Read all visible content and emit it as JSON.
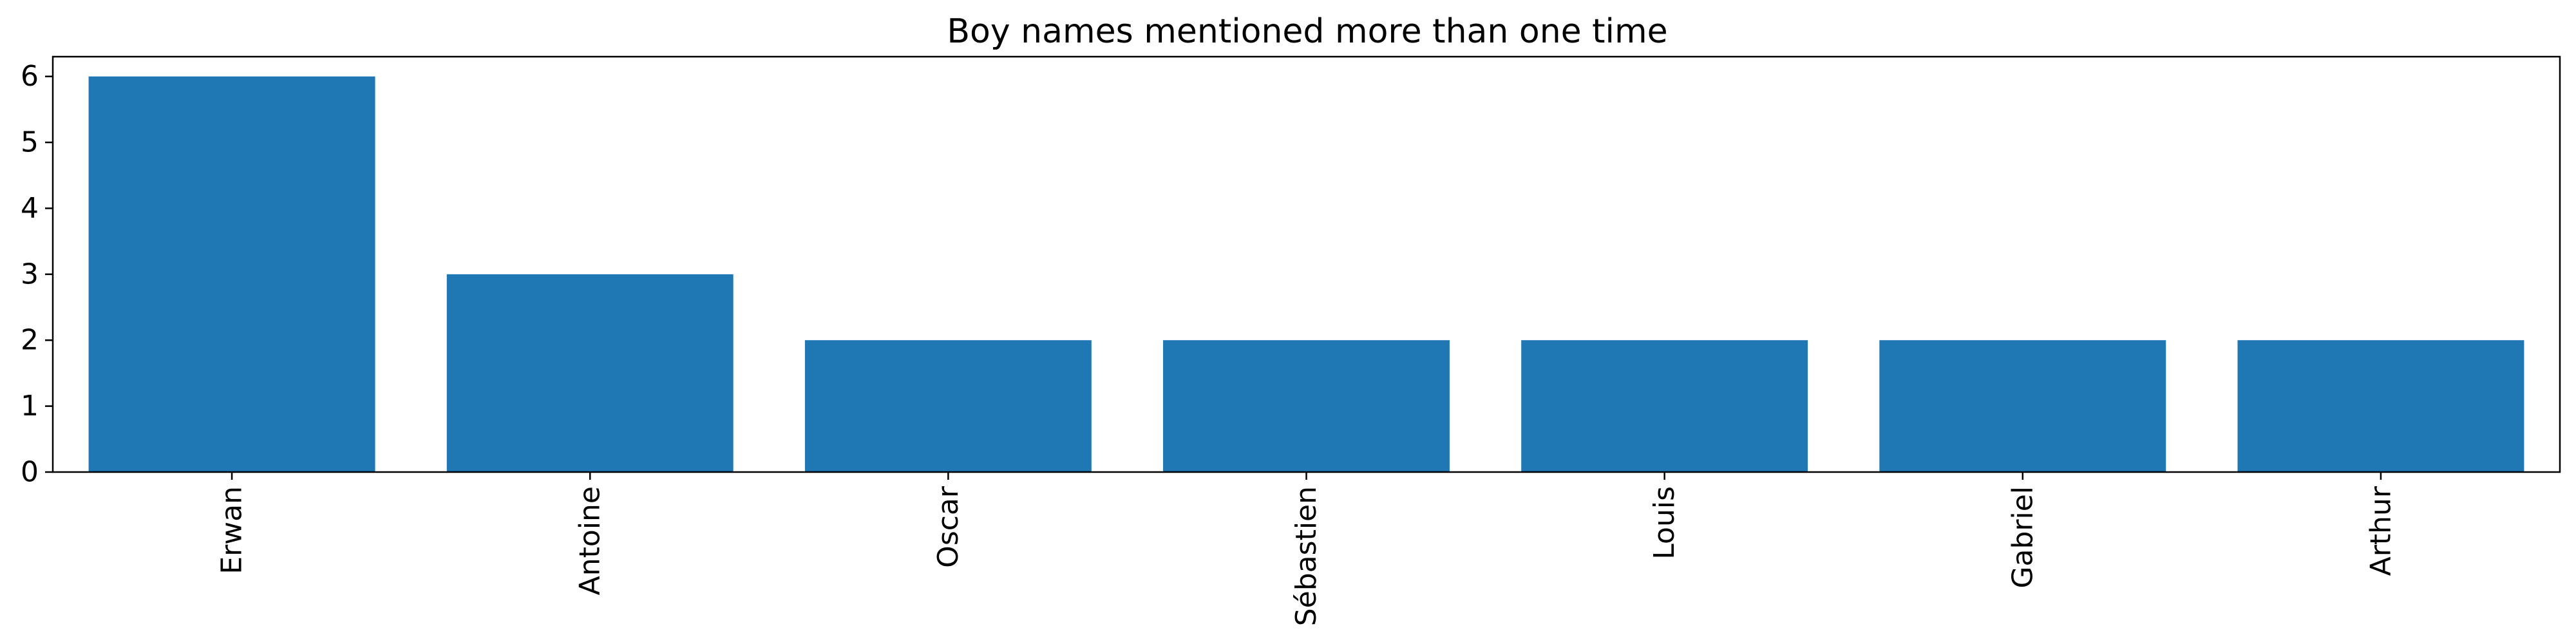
{
  "chart_data": {
    "type": "bar",
    "title": "Boy names mentioned more than one time",
    "xlabel": "",
    "ylabel": "",
    "categories": [
      "Erwan",
      "Antoine",
      "Oscar",
      "Sébastien",
      "Louis",
      "Gabriel",
      "Arthur"
    ],
    "values": [
      6,
      3,
      2,
      2,
      2,
      2,
      2
    ],
    "ylim": [
      0,
      6.3
    ],
    "yticks": [
      0,
      1,
      2,
      3,
      4,
      5,
      6
    ],
    "bar_color": "#1f77b4",
    "grid": false,
    "legend": false
  }
}
